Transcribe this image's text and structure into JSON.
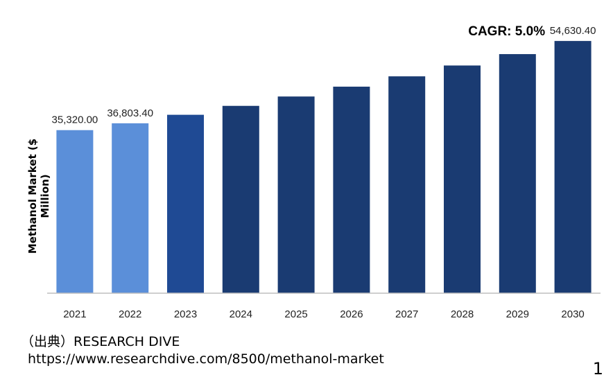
{
  "chart_data": {
    "type": "bar",
    "title": "",
    "xlabel": "",
    "ylabel": "Methanol Market ($ Million)",
    "ylabel_lines": [
      "Methanol Market ($",
      "Million)"
    ],
    "categories": [
      "2021",
      "2022",
      "2023",
      "2024",
      "2025",
      "2026",
      "2027",
      "2028",
      "2029",
      "2030"
    ],
    "values": [
      35320.0,
      36803.4,
      38643.6,
      40575.8,
      42604.6,
      44734.8,
      46971.6,
      49320.1,
      51786.1,
      54630.4
    ],
    "data_labels": [
      "35,320.00",
      "36,803.40",
      "",
      "",
      "",
      "",
      "",
      "",
      "",
      "54,630.40"
    ],
    "bar_colors": [
      "#5b8fd9",
      "#5b8fd9",
      "#1f4a94",
      "#1a3b72",
      "#1a3b72",
      "#1a3b72",
      "#1a3b72",
      "#1a3b72",
      "#1a3b72",
      "#1a3b72"
    ],
    "annotation": "CAGR: 5.0%",
    "ylim": [
      0,
      57500
    ],
    "grid": false,
    "legend": "none"
  },
  "footer": {
    "source": "（出典）RESEARCH DIVE",
    "url": "https://www.researchdive.com/8500/methanol-market",
    "page_number": "1"
  }
}
